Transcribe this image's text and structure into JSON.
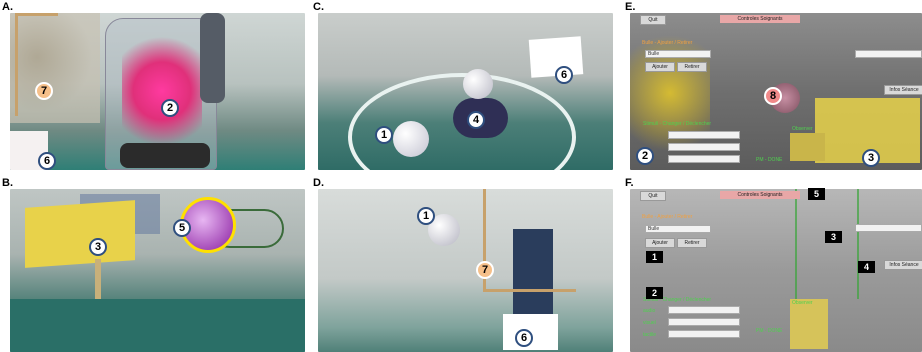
{
  "labels": {
    "a": "A.",
    "b": "B.",
    "c": "C.",
    "d": "D.",
    "e": "E.",
    "f": "F."
  },
  "markers": {
    "a_7": "7",
    "a_2": "2",
    "a_6": "6",
    "b_3": "3",
    "b_5": "5",
    "c_6": "6",
    "c_1": "1",
    "c_4": "4",
    "d_1": "1",
    "d_7": "7",
    "d_6": "6",
    "e_8": "8",
    "e_2": "2",
    "e_3": "3"
  },
  "tags": {
    "f_1": "1",
    "f_2": "2",
    "f_3": "3",
    "f_4": "4",
    "f_5": "5"
  },
  "ui_e": {
    "quit": "Quit",
    "controls": "Controles Soignants",
    "spawn_title": "Bulle - Ajouter / Retirer",
    "select_bulle": "Bulle",
    "add": "Ajouter",
    "remove": "Retirer",
    "stimuli": "Stimuli - Changer / Déclencher",
    "observer": "Observer",
    "info": "Infos Séance",
    "pm": "PM - DONE"
  },
  "ui_f": {
    "quit": "Quit",
    "controls": "Controles Soignants",
    "spawn_title": "Bulle - Ajouter / Retirer",
    "select_bulle": "Bulle",
    "add": "Ajouter",
    "remove": "Retirer",
    "stimuli": "Stimuli - Changer / Déclencher",
    "audio": "audio",
    "visuel": "visuel",
    "tactile": "tactile",
    "observer": "Observer",
    "info": "Infos Séance",
    "pm": "PM - DONE"
  },
  "colors": {
    "marker_border": "#2f4f7f",
    "orange": "#f6c08a",
    "pink": "#f08a8a",
    "panel_yellow": "#e8d24a"
  }
}
